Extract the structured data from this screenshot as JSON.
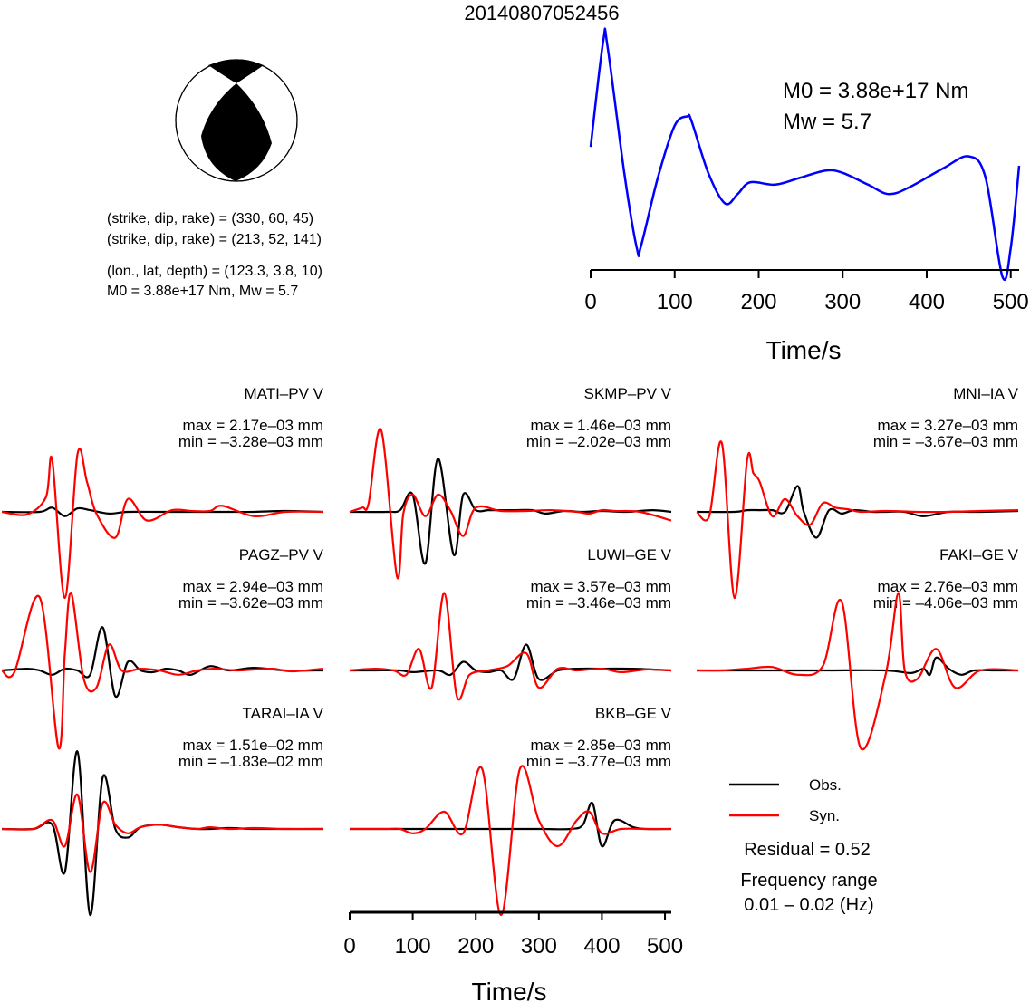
{
  "title": "20140807052456",
  "focal_mechanism": {
    "plane1": "(strike, dip, rake) = (330, 60, 45)",
    "plane2": "(strike, dip, rake) = (213, 52, 141)",
    "location": "(lon., lat, depth) = (123.3, 3.8, 10)",
    "moment_line": "M0 = 3.88e+17 Nm, Mw = 5.7"
  },
  "stf": {
    "m0_text": "M0 = 3.88e+17 Nm",
    "mw_text": "Mw = 5.7",
    "color": "#0000ff"
  },
  "legend": {
    "obs_label": "Obs.",
    "syn_label": "Syn.",
    "obs_color": "#000000",
    "syn_color": "#ff0000",
    "residual": "Residual = 0.52",
    "freq_title": "Frequency range",
    "freq_range": "0.01 – 0.02 (Hz)"
  },
  "stations": [
    {
      "name": "MATI–PV V",
      "max": "max = 2.17e–03 mm",
      "min": "min = –3.28e–03 mm"
    },
    {
      "name": "SKMP–PV V",
      "max": "max = 1.46e–03 mm",
      "min": "min = –2.02e–03 mm"
    },
    {
      "name": "MNI–IA V",
      "max": "max = 3.27e–03 mm",
      "min": "min = –3.67e–03 mm"
    },
    {
      "name": "PAGZ–PV V",
      "max": "max = 2.94e–03 mm",
      "min": "min = –3.62e–03 mm"
    },
    {
      "name": "LUWI–GE V",
      "max": "max = 3.57e–03 mm",
      "min": "min = –3.46e–03 mm"
    },
    {
      "name": "FAKI–GE V",
      "max": "max = 2.76e–03 mm",
      "min": "min = –4.06e–03 mm"
    },
    {
      "name": "TARAI–IA V",
      "max": "max = 1.51e–02 mm",
      "min": "min = –1.83e–02 mm"
    },
    {
      "name": "BKB–GE V",
      "max": "max = 2.85e–03 mm",
      "min": "min = –3.77e–03 mm"
    }
  ],
  "chart_data": [
    {
      "type": "line",
      "series": [
        {
          "x": [
            0,
            15,
            20,
            40,
            55,
            60,
            80,
            100,
            115,
            120,
            140,
            160,
            175,
            190,
            220,
            250,
            280,
            300,
            330,
            355,
            380,
            420,
            450,
            470,
            490,
            500,
            510
          ],
          "values": [
            0.53,
            0.98,
            0.96,
            0.42,
            0.1,
            0.11,
            0.4,
            0.62,
            0.66,
            0.64,
            0.42,
            0.29,
            0.33,
            0.38,
            0.37,
            0.4,
            0.43,
            0.42,
            0.37,
            0.33,
            0.36,
            0.44,
            0.49,
            0.4,
            -0.02,
            0.1,
            0.45
          ]
        }
      ],
      "xlim": [
        0,
        510
      ],
      "xticks": [
        0,
        100,
        200,
        300,
        400,
        500
      ],
      "xlabel": "Time/s"
    },
    {
      "type": "line",
      "xlim": [
        0,
        510
      ],
      "xticks": [
        0,
        100,
        200,
        300,
        400,
        500
      ],
      "xlabel": "Time/s",
      "waveforms": [
        {
          "station": "MATI-PV V",
          "obs": {
            "x": [
              0,
              60,
              80,
              100,
              120,
              140,
              170,
              200,
              250,
              300,
              350,
              400,
              450,
              510
            ],
            "values": [
              0,
              0,
              0.05,
              -0.05,
              0.04,
              0.02,
              -0.02,
              0,
              0,
              0,
              0,
              0,
              0.01,
              0
            ]
          },
          "syn": {
            "x": [
              0,
              40,
              70,
              80,
              100,
              120,
              135,
              150,
              180,
              200,
              230,
              270,
              300,
              330,
              350,
              400,
              450,
              510
            ],
            "values": [
              0,
              -0.03,
              0.17,
              0.6,
              -1.0,
              0.67,
              0.35,
              -0.02,
              -0.3,
              0.15,
              -0.1,
              0.02,
              0.01,
              0.01,
              0.07,
              -0.05,
              0,
              0
            ]
          }
        },
        {
          "station": "SKMP-PV V",
          "obs": {
            "x": [
              0,
              60,
              80,
              100,
              120,
              140,
              165,
              180,
              200,
              220,
              240,
              260,
              290,
              310,
              340,
              370,
              400,
              440,
              480,
              510
            ],
            "values": [
              0,
              0,
              0.02,
              0.2,
              -0.6,
              0.62,
              -0.5,
              0.2,
              0.02,
              0.02,
              0.02,
              0.02,
              0.02,
              -0.02,
              0.01,
              0.0,
              0.01,
              0.0,
              0.02,
              0
            ]
          },
          "syn": {
            "x": [
              0,
              20,
              30,
              50,
              75,
              85,
              100,
              120,
              140,
              160,
              180,
              200,
              240,
              280,
              320,
              360,
              380,
              400,
              420,
              460,
              510
            ],
            "values": [
              0,
              0.05,
              0.1,
              0.95,
              -0.75,
              -0.02,
              0.2,
              -0.05,
              0.2,
              0.01,
              -0.28,
              0.05,
              0.01,
              0.01,
              0.02,
              0.0,
              -0.02,
              0.02,
              0.01,
              0.0,
              -0.1
            ]
          }
        },
        {
          "station": "MNI-IA V",
          "obs": {
            "x": [
              0,
              60,
              80,
              100,
              120,
              140,
              160,
              170,
              190,
              210,
              230,
              250,
              280,
              300,
              330,
              360,
              400,
              450,
              510
            ],
            "values": [
              0,
              0,
              0.02,
              0.02,
              0.02,
              0.0,
              0.3,
              0.0,
              -0.3,
              0.02,
              -0.02,
              0.02,
              0,
              0,
              0,
              -0.05,
              0,
              0,
              0.01
            ]
          },
          "syn": {
            "x": [
              0,
              20,
              40,
              60,
              80,
              90,
              100,
              120,
              140,
              160,
              180,
              200,
              220,
              240,
              260,
              300,
              350,
              400,
              450,
              510
            ],
            "values": [
              0,
              -0.05,
              0.8,
              -1.0,
              0.6,
              0.45,
              0.35,
              -0.05,
              0.15,
              -0.05,
              -0.15,
              0.1,
              0.05,
              0.03,
              0,
              0.01,
              0,
              0,
              0.01,
              0.02
            ]
          }
        },
        {
          "station": "PAGZ-PV V",
          "obs": {
            "x": [
              0,
              40,
              60,
              80,
              100,
              120,
              140,
              160,
              180,
              200,
              220,
              240,
              260,
              280,
              300,
              330,
              360,
              400,
              450,
              510
            ],
            "values": [
              0,
              0.02,
              0.0,
              -0.05,
              0.02,
              0.0,
              -0.05,
              0.5,
              -0.3,
              0.1,
              0.0,
              -0.02,
              0.02,
              0.0,
              -0.05,
              0.05,
              0.0,
              0.03,
              0,
              0.0
            ]
          },
          "syn": {
            "x": [
              0,
              20,
              60,
              90,
              100,
              110,
              130,
              150,
              170,
              190,
              220,
              250,
              280,
              310,
              340,
              370,
              400,
              430,
              460,
              510
            ],
            "values": [
              0,
              -0.02,
              0.85,
              -0.9,
              0.2,
              0.9,
              -0.1,
              -0.2,
              0.3,
              0.0,
              0.02,
              0.0,
              -0.05,
              0.0,
              0.02,
              0.0,
              0.01,
              0.02,
              -0.01,
              0.02
            ]
          }
        },
        {
          "station": "LUWI-GE V",
          "obs": {
            "x": [
              0,
              40,
              80,
              100,
              140,
              160,
              180,
              200,
              220,
              240,
              260,
              280,
              300,
              330,
              360,
              400,
              450,
              510
            ],
            "values": [
              0,
              0,
              0.0,
              -0.02,
              0.0,
              -0.05,
              0.1,
              0.0,
              -0.02,
              0.0,
              -0.1,
              0.3,
              -0.1,
              0.0,
              0.02,
              0.02,
              0.02,
              0.0
            ]
          },
          "syn": {
            "x": [
              0,
              40,
              70,
              90,
              110,
              130,
              150,
              170,
              190,
              220,
              250,
              280,
              300,
              330,
              360,
              400,
              430,
              470,
              510
            ],
            "values": [
              0,
              0.02,
              0.0,
              -0.05,
              0.25,
              -0.2,
              0.9,
              -0.3,
              -0.05,
              0.0,
              0.05,
              0.2,
              -0.2,
              0.02,
              0.0,
              0.02,
              -0.02,
              0.01,
              0.0
            ]
          }
        },
        {
          "station": "FAKI-GE V",
          "obs": {
            "x": [
              0,
              100,
              200,
              300,
              340,
              360,
              370,
              380,
              400,
              420,
              440,
              470,
              510
            ],
            "values": [
              0,
              0,
              0,
              0,
              -0.03,
              0.02,
              -0.05,
              0.15,
              0.02,
              -0.05,
              0.0,
              0.0,
              0.0
            ]
          },
          "syn": {
            "x": [
              0,
              40,
              80,
              120,
              160,
              200,
              230,
              260,
              300,
              320,
              330,
              350,
              380,
              410,
              450,
              510
            ],
            "values": [
              0,
              0.0,
              0.02,
              0.04,
              -0.05,
              0.05,
              0.8,
              -0.9,
              -0.04,
              0.9,
              0.0,
              -0.1,
              0.25,
              -0.2,
              0.0,
              0.0
            ]
          }
        },
        {
          "station": "TARAI-IA V",
          "obs": {
            "x": [
              0,
              50,
              80,
              100,
              120,
              140,
              160,
              180,
              200,
              220,
              250,
              280,
              310,
              330,
              360,
              400,
              450,
              510
            ],
            "values": [
              0,
              0.0,
              0.05,
              -0.5,
              0.9,
              -1.0,
              0.6,
              0.0,
              -0.1,
              0.02,
              0.05,
              0.02,
              0.0,
              0.0,
              0.01,
              0.0,
              0.0,
              0.0
            ]
          },
          "syn": {
            "x": [
              0,
              50,
              80,
              100,
              120,
              140,
              160,
              180,
              200,
              220,
              250,
              280,
              310,
              330,
              360,
              400,
              450,
              510
            ],
            "values": [
              0,
              0.0,
              0.1,
              -0.2,
              0.4,
              -0.5,
              0.3,
              0.05,
              -0.05,
              0.02,
              0.05,
              0.02,
              0.0,
              0.02,
              0.0,
              0.01,
              0.0,
              0.0
            ]
          }
        },
        {
          "station": "BKB-GE V",
          "obs": {
            "x": [
              0,
              100,
              200,
              300,
              350,
              370,
              385,
              400,
              420,
              450,
              470,
              510
            ],
            "values": [
              0,
              0,
              0,
              0,
              0.0,
              0.05,
              0.3,
              -0.2,
              0.1,
              0.02,
              0.0,
              0.0
            ]
          },
          "syn": {
            "x": [
              0,
              40,
              60,
              80,
              100,
              120,
              150,
              180,
              210,
              240,
              270,
              300,
              330,
              360,
              380,
              400,
              430,
              470,
              510
            ],
            "values": [
              0,
              0.0,
              0.0,
              0.0,
              -0.05,
              0.0,
              0.2,
              -0.05,
              0.7,
              -1.0,
              0.7,
              0.1,
              -0.2,
              0.1,
              0.2,
              -0.05,
              0.0,
              0.0,
              0.0
            ]
          }
        }
      ]
    }
  ]
}
